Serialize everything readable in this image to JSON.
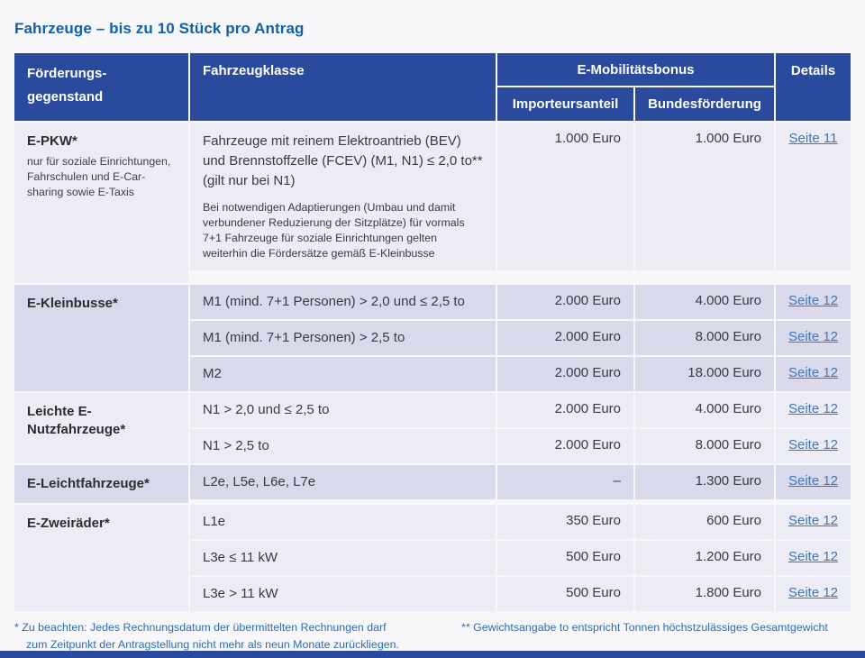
{
  "page": {
    "title": "Fahrzeuge – bis zu 10 Stück pro Antrag",
    "footnotes": {
      "left_line1": "* Zu beachten: Jedes Rechnungsdatum der übermittelten Rechnungen darf",
      "left_line2": "zum Zeitpunkt der Antragstellung nicht mehr als neun Monate zurückliegen.",
      "right": "** Gewichtsangabe to entspricht Tonnen höchstzulässiges Gesamtgewicht"
    },
    "colors": {
      "header_blue": "#2a4b9d",
      "row_light": "#ececf5",
      "row_dark": "#d8d9ea",
      "title_blue": "#1160a8",
      "link_blue": "#3d77bb"
    }
  },
  "table": {
    "header": {
      "col1_line1": "Förderungs-",
      "col1_line2": "gegenstand",
      "col2": "Fahrzeugklasse",
      "bonus": "E-Mobilitätsbonus",
      "sub_importeur": "Importeursanteil",
      "sub_bund": "Bundesförderung",
      "details": "Details"
    },
    "groups": [
      {
        "name": "E-PKW*",
        "note": "nur für soziale Einrichtungen, Fahrschulen und E-Car-sharing sowie E-Taxis",
        "rows": [
          {
            "klasse": "Fahrzeuge mit reinem Elektroantrieb (BEV) und Brennstoffzelle (FCEV) (M1, N1) ≤ 2,0 to** (gilt nur bei N1)",
            "klasse_note": "Bei notwendigen Adaptierungen (Umbau und damit verbundener Reduzierung der Sitzplätze) für vormals 7+1 Fahrzeuge für soziale Einrichtungen gelten weiterhin die Fördersätze gemäß E-Kleinbusse",
            "importeur": "1.000 Euro",
            "bund": "1.000 Euro",
            "details": "Seite 11"
          }
        ]
      },
      {
        "name": "E-Kleinbusse*",
        "rows": [
          {
            "klasse": "M1 (mind. 7+1 Personen) > 2,0 und ≤ 2,5 to",
            "importeur": "2.000 Euro",
            "bund": "4.000 Euro",
            "details": "Seite 12"
          },
          {
            "klasse": "M1 (mind. 7+1 Personen) > 2,5 to",
            "importeur": "2.000 Euro",
            "bund": "8.000 Euro",
            "details": "Seite 12"
          },
          {
            "klasse": "M2",
            "importeur": "2.000 Euro",
            "bund": "18.000 Euro",
            "details": "Seite 12"
          }
        ]
      },
      {
        "name": "Leichte E-Nutzfahrzeuge*",
        "rows": [
          {
            "klasse": "N1 > 2,0 und ≤ 2,5 to",
            "importeur": "2.000 Euro",
            "bund": "4.000 Euro",
            "details": "Seite 12"
          },
          {
            "klasse": "N1 > 2,5 to",
            "importeur": "2.000 Euro",
            "bund": "8.000 Euro",
            "details": "Seite 12"
          }
        ]
      },
      {
        "name": "E-Leichtfahrzeuge*",
        "rows": [
          {
            "klasse": "L2e, L5e, L6e, L7e",
            "importeur": "–",
            "bund": "1.300 Euro",
            "details": "Seite 12"
          }
        ]
      },
      {
        "name": "E-Zweiräder*",
        "rows": [
          {
            "klasse": "L1e",
            "importeur": "350 Euro",
            "bund": "600 Euro",
            "details": "Seite 12"
          },
          {
            "klasse": "L3e ≤ 11 kW",
            "importeur": "500 Euro",
            "bund": "1.200 Euro",
            "details": "Seite 12"
          },
          {
            "klasse": "L3e > 11 kW",
            "importeur": "500 Euro",
            "bund": "1.800 Euro",
            "details": "Seite 12"
          }
        ]
      }
    ]
  }
}
